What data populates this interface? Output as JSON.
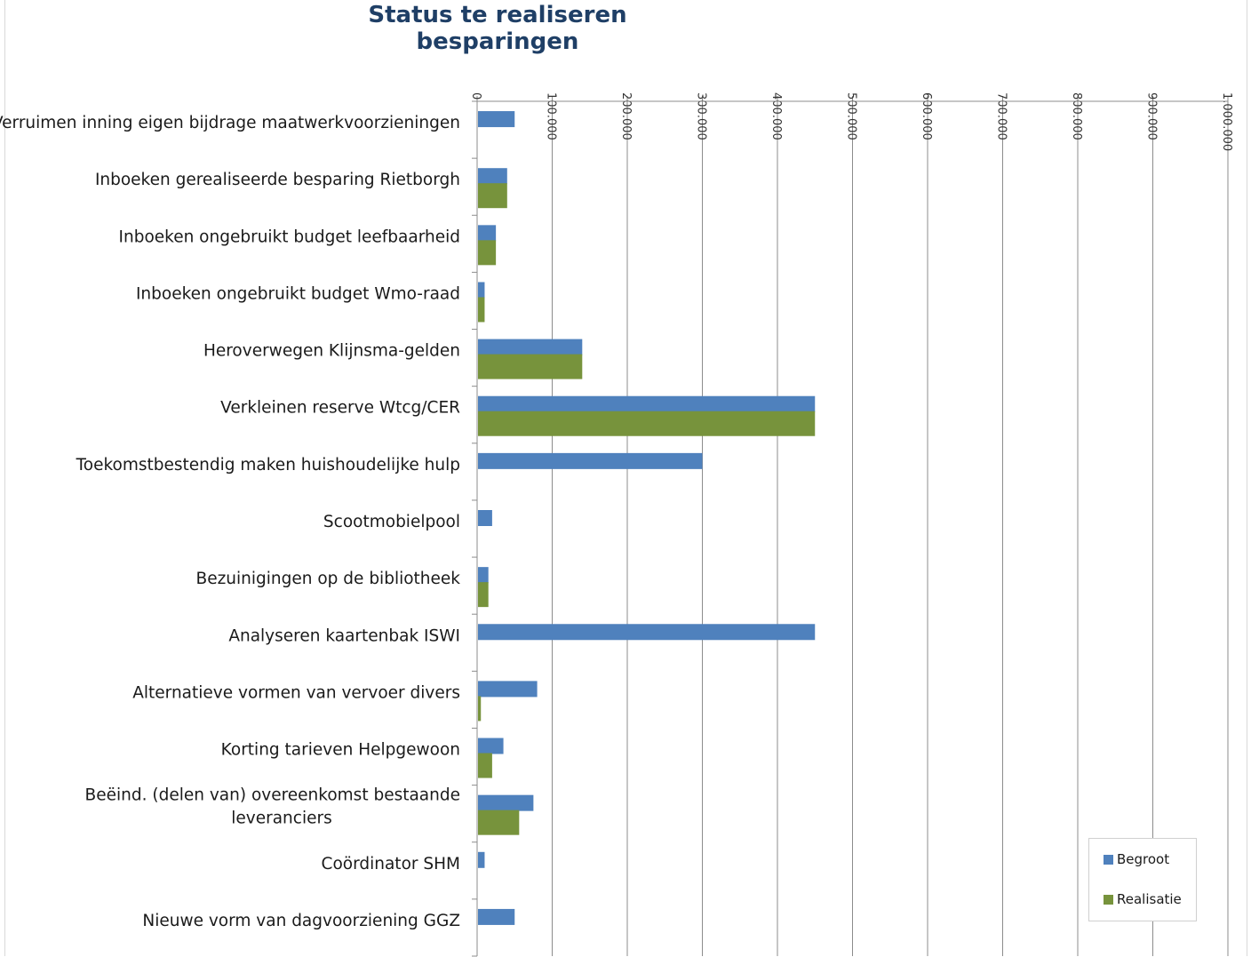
{
  "chart_data": {
    "type": "bar",
    "orientation": "horizontal",
    "title": "Status te realiseren besparingen",
    "categories": [
      "Verruimen inning eigen bijdrage maatwerkvoorzieningen",
      "Inboeken gerealiseerde besparing Rietborgh",
      "Inboeken ongebruikt budget leefbaarheid",
      "Inboeken ongebruikt budget Wmo-raad",
      "Heroverwegen Klijnsma-gelden",
      "Verkleinen reserve Wtcg/CER",
      "Toekomstbestendig maken huishoudelijke hulp",
      "Scootmobielpool",
      "Bezuinigingen op de bibliotheek",
      "Analyseren kaartenbak ISWI",
      "Alternatieve vormen van vervoer divers",
      "Korting tarieven Helpgewoon",
      "Beëind. (delen van) overeenkomst bestaande leveranciers",
      "Coördinator SHM",
      "Nieuwe vorm van dagvoorziening GGZ"
    ],
    "category_lines": [
      [
        "Verruimen inning eigen bijdrage maatwerkvoorzieningen"
      ],
      [
        "Inboeken gerealiseerde besparing Rietborgh"
      ],
      [
        "Inboeken ongebruikt budget leefbaarheid"
      ],
      [
        "Inboeken ongebruikt budget Wmo-raad"
      ],
      [
        "Heroverwegen Klijnsma-gelden"
      ],
      [
        "Verkleinen reserve Wtcg/CER"
      ],
      [
        "Toekomstbestendig maken huishoudelijke hulp"
      ],
      [
        "Scootmobielpool"
      ],
      [
        "Bezuinigingen op de bibliotheek"
      ],
      [
        "Analyseren kaartenbak ISWI"
      ],
      [
        "Alternatieve vormen van vervoer divers"
      ],
      [
        "Korting tarieven Helpgewoon"
      ],
      [
        "Beëind. (delen van) overeenkomst bestaande",
        "leveranciers"
      ],
      [
        "Coördinator SHM"
      ],
      [
        "Nieuwe vorm van dagvoorziening GGZ"
      ]
    ],
    "series": [
      {
        "name": "Begroot",
        "color": "#4f81bd",
        "values": [
          50000,
          40000,
          25000,
          10000,
          140000,
          450000,
          300000,
          20000,
          15000,
          450000,
          80000,
          35000,
          75000,
          10000,
          50000
        ]
      },
      {
        "name": "Realisatie",
        "color": "#77933c",
        "values": [
          null,
          40000,
          25000,
          10000,
          140000,
          450000,
          null,
          null,
          15000,
          null,
          5000,
          20000,
          56000,
          null,
          null
        ]
      }
    ],
    "xlim": [
      0,
      1000000
    ],
    "ticks": [
      0,
      100000,
      200000,
      300000,
      400000,
      500000,
      600000,
      700000,
      800000,
      900000,
      1000000
    ],
    "tick_labels": [
      "0",
      "100.000",
      "200.000",
      "300.000",
      "400.000",
      "500.000",
      "600.000",
      "700.000",
      "800.000",
      "900.000",
      "1.000.000"
    ],
    "axis_position": "top",
    "grid": true,
    "legend_position": "bottom-right"
  }
}
